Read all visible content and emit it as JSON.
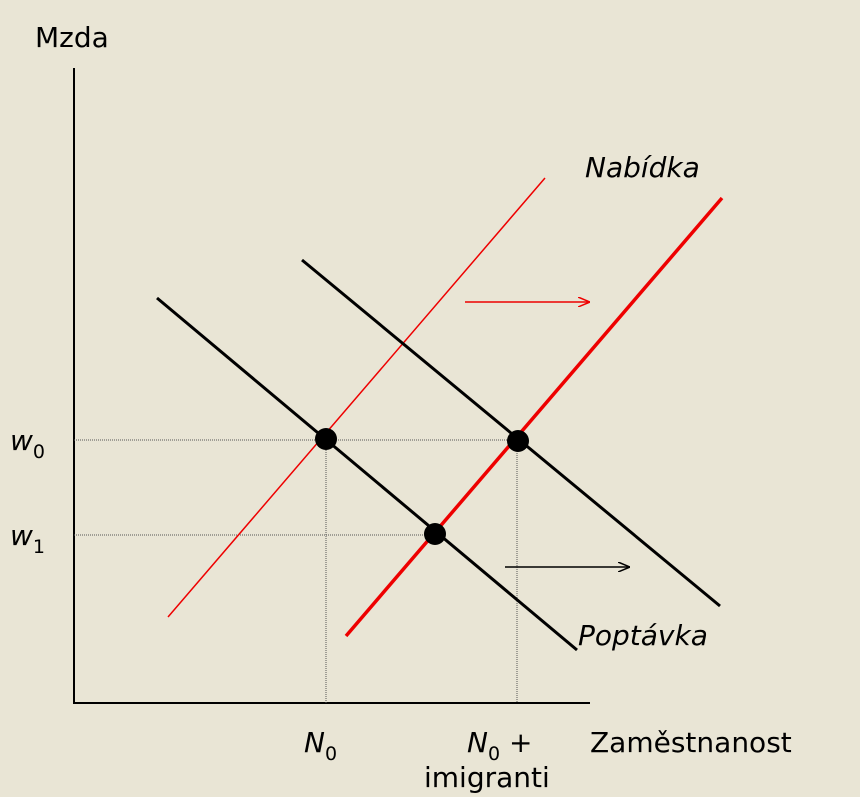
{
  "axes": {
    "y_label": "Mzda",
    "x_label": "Zaměstnanost"
  },
  "curves": {
    "supply": "Nabídka",
    "demand": "Poptávka"
  },
  "y_levels": [
    {
      "base": "w",
      "sub": "0"
    },
    {
      "base": "w",
      "sub": "1"
    }
  ],
  "x_levels": [
    {
      "base": "N",
      "sub": "0"
    },
    {
      "base": "N",
      "sub": "0",
      "suffix": " +",
      "line2": "imigranti"
    }
  ]
}
